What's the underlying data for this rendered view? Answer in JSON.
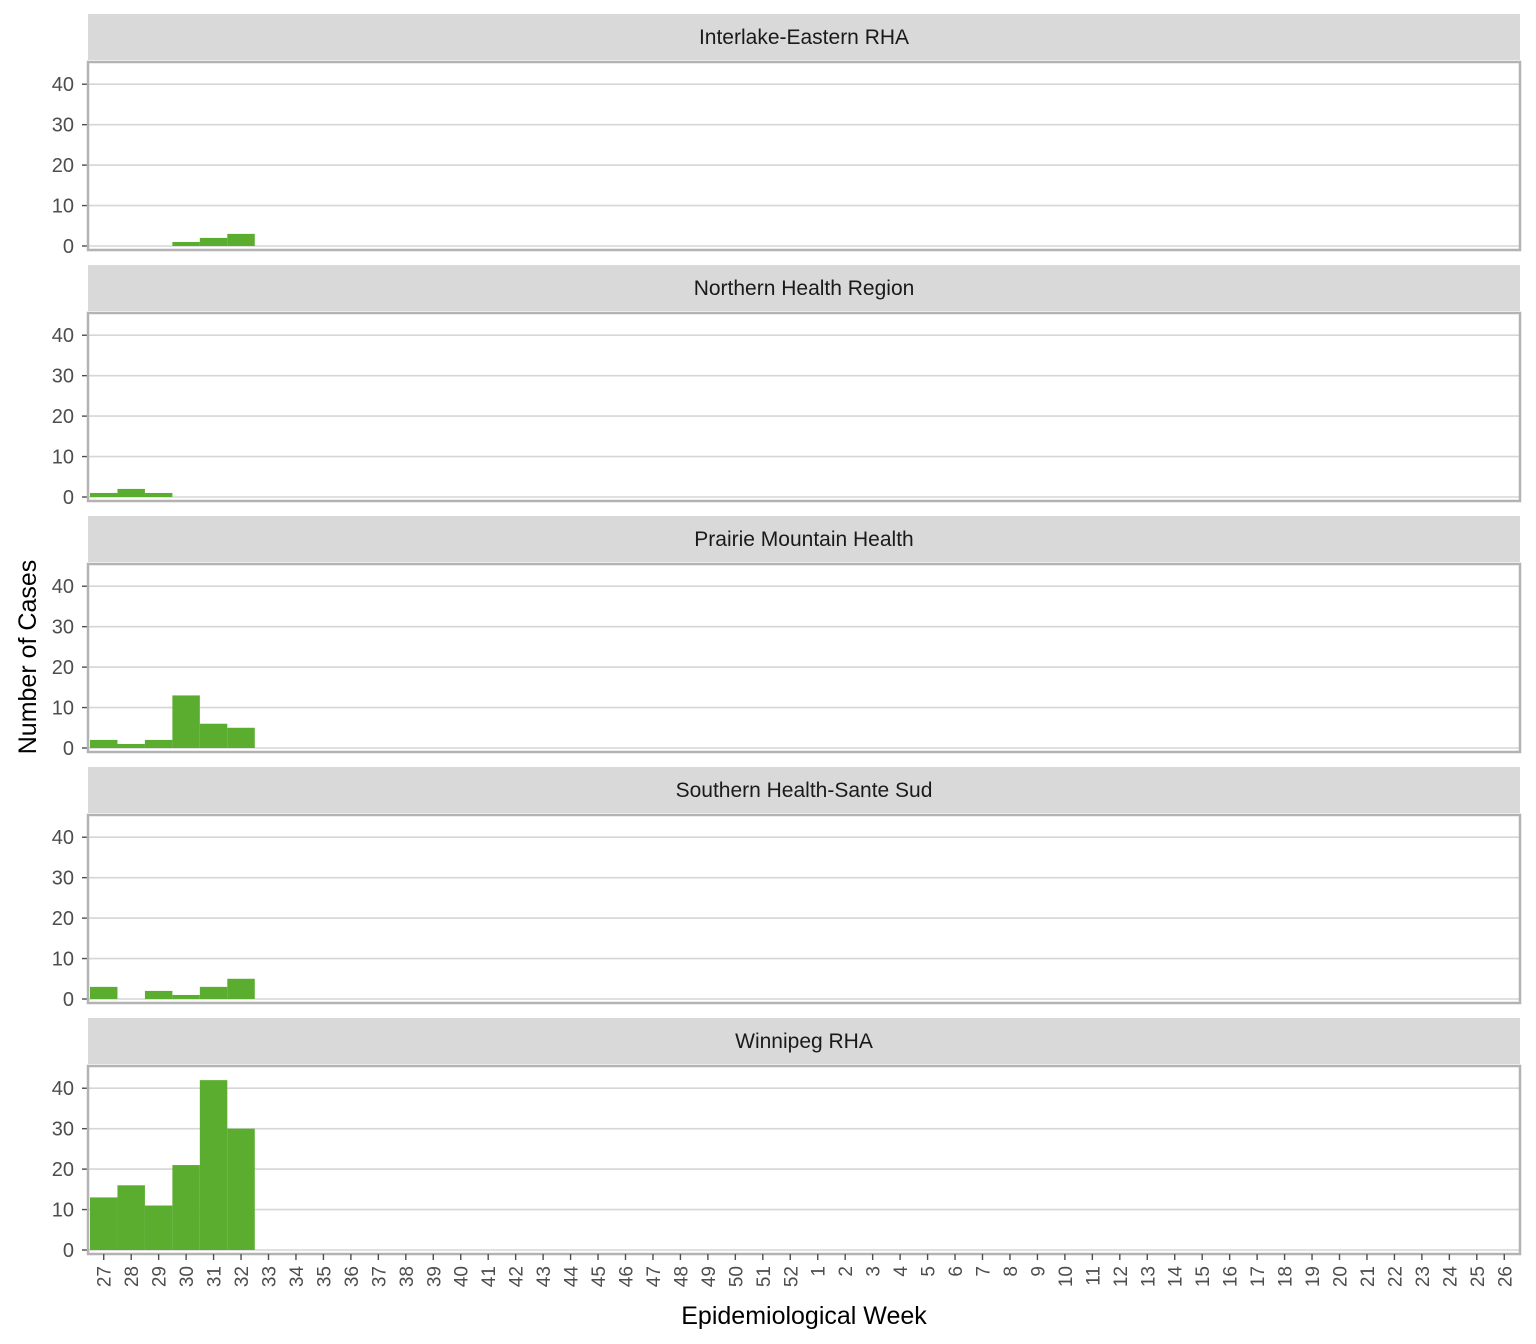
{
  "chart_data": {
    "type": "bar",
    "xlabel": "Epidemiological Week",
    "ylabel": "Number of Cases",
    "ylim": [
      0,
      45
    ],
    "yticks": [
      0,
      10,
      20,
      30,
      40
    ],
    "grid": true,
    "colors": {
      "bar": "#5aad2e",
      "strip_bg": "#d9d9d9",
      "panel_border": "#b3b3b3",
      "grid": "#d6d6d6"
    },
    "categories": [
      "27",
      "28",
      "29",
      "30",
      "31",
      "32",
      "33",
      "34",
      "35",
      "36",
      "37",
      "38",
      "39",
      "40",
      "41",
      "42",
      "43",
      "44",
      "45",
      "46",
      "47",
      "48",
      "49",
      "50",
      "51",
      "52",
      "1",
      "2",
      "3",
      "4",
      "5",
      "6",
      "7",
      "8",
      "9",
      "10",
      "11",
      "12",
      "13",
      "14",
      "15",
      "16",
      "17",
      "18",
      "19",
      "20",
      "21",
      "22",
      "23",
      "24",
      "25",
      "26"
    ],
    "panels": [
      {
        "name": "Interlake-Eastern RHA",
        "values": [
          0,
          0,
          0,
          1,
          2,
          3
        ]
      },
      {
        "name": "Northern Health Region",
        "values": [
          1,
          2,
          1,
          0,
          0,
          0
        ]
      },
      {
        "name": "Prairie Mountain Health",
        "values": [
          2,
          1,
          2,
          13,
          6,
          5
        ]
      },
      {
        "name": "Southern Health-Sante Sud",
        "values": [
          3,
          0,
          2,
          1,
          3,
          5
        ]
      },
      {
        "name": "Winnipeg RHA",
        "values": [
          13,
          16,
          11,
          21,
          42,
          30
        ]
      }
    ]
  }
}
